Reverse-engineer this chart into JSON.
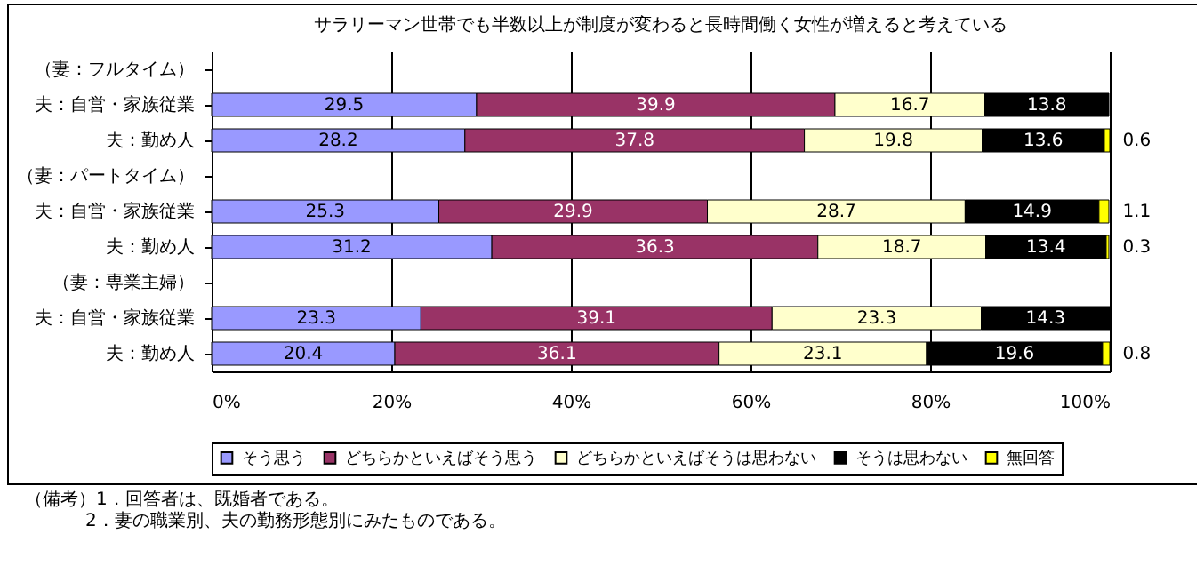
{
  "chart_data": {
    "type": "bar",
    "orientation": "horizontal",
    "stacked": true,
    "title": "サラリーマン世帯でも半数以上が制度が変わると長時間働く女性が増えると考えている",
    "categories": [
      "（妻：フルタイム）",
      "夫：自営・家族従業",
      "夫：勤め人",
      "（妻：パートタイム）",
      "夫：自営・家族従業",
      "夫：勤め人",
      "（妻：専業主婦）",
      "夫：自営・家族従業",
      "夫：勤め人"
    ],
    "series": [
      {
        "name": "そう思う",
        "color": "#9999ff",
        "values": [
          null,
          29.5,
          28.2,
          null,
          25.3,
          31.2,
          null,
          23.3,
          20.4
        ]
      },
      {
        "name": "どちらかといえばそう思う",
        "color": "#993366",
        "values": [
          null,
          39.9,
          37.8,
          null,
          29.9,
          36.3,
          null,
          39.1,
          36.1
        ]
      },
      {
        "name": "どちらかといえばそうは思わない",
        "color": "#ffffcc",
        "values": [
          null,
          16.7,
          19.8,
          null,
          28.7,
          18.7,
          null,
          23.3,
          23.1
        ]
      },
      {
        "name": "そうは思わない",
        "color": "#000000",
        "values": [
          null,
          13.8,
          13.6,
          null,
          14.9,
          13.4,
          null,
          14.3,
          19.6
        ]
      },
      {
        "name": "無回答",
        "color": "#ffff00",
        "values": [
          null,
          null,
          0.6,
          null,
          1.1,
          0.3,
          null,
          null,
          0.8
        ]
      }
    ],
    "xlim": [
      0,
      100
    ],
    "xticks": [
      {
        "value": 0,
        "label": "0%"
      },
      {
        "value": 20,
        "label": "20%"
      },
      {
        "value": 40,
        "label": "40%"
      },
      {
        "value": 60,
        "label": "60%"
      },
      {
        "value": 80,
        "label": "80%"
      },
      {
        "value": 100,
        "label": "100%"
      }
    ],
    "grid": "x",
    "legend": "bottom",
    "data_labels": true,
    "annotations": [
      "（備考）1．回答者は、既婚者である。",
      "2．妻の職業別、夫の勤務形態別にみたものである。"
    ]
  }
}
